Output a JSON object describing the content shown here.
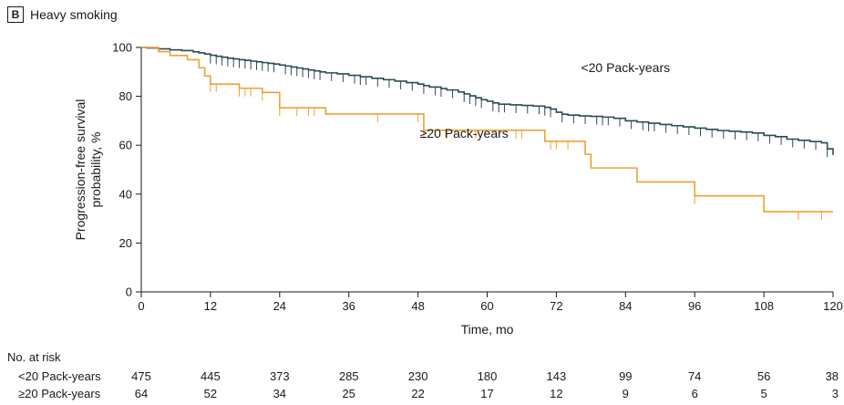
{
  "panel": {
    "letter": "B",
    "title": "Heavy smoking"
  },
  "colors": {
    "low": "#2d4b55",
    "high": "#f0a033",
    "axis": "#1a1a1a"
  },
  "chart_data": {
    "type": "line",
    "title": "Heavy smoking",
    "xlabel": "Time, mo",
    "ylabel": "Progression-free survival probability, %",
    "ylabel_lines": [
      "Progression-free survival",
      "probability, %"
    ],
    "xlim": [
      0,
      120
    ],
    "ylim": [
      0,
      100
    ],
    "xticks": [
      0,
      12,
      24,
      36,
      48,
      60,
      72,
      84,
      96,
      108,
      120
    ],
    "yticks": [
      0,
      20,
      40,
      60,
      80,
      100
    ],
    "grid": false,
    "series": [
      {
        "name": "<20 Pack-years",
        "color": "#2d4b55",
        "steps": [
          [
            0,
            100
          ],
          [
            1,
            99.8
          ],
          [
            3,
            99.4
          ],
          [
            5,
            99
          ],
          [
            7,
            98.7
          ],
          [
            9,
            98.2
          ],
          [
            10,
            97.8
          ],
          [
            11,
            97.3
          ],
          [
            12,
            96.8
          ],
          [
            13,
            96.4
          ],
          [
            14,
            96
          ],
          [
            15,
            95.6
          ],
          [
            16,
            95.3
          ],
          [
            17,
            95
          ],
          [
            18,
            94.7
          ],
          [
            19,
            94.4
          ],
          [
            20,
            94.1
          ],
          [
            21,
            93.8
          ],
          [
            22,
            93.5
          ],
          [
            23,
            93.2
          ],
          [
            24,
            92.8
          ],
          [
            25,
            92.4
          ],
          [
            26,
            92
          ],
          [
            27,
            91.6
          ],
          [
            28,
            91.2
          ],
          [
            29,
            90.8
          ],
          [
            30,
            90.4
          ],
          [
            31,
            90
          ],
          [
            32,
            89.6
          ],
          [
            34,
            89.2
          ],
          [
            36,
            88.6
          ],
          [
            38,
            88
          ],
          [
            40,
            87.4
          ],
          [
            42,
            86.8
          ],
          [
            44,
            86.2
          ],
          [
            46,
            85.6
          ],
          [
            48,
            85
          ],
          [
            49,
            84.4
          ],
          [
            50,
            83.8
          ],
          [
            52,
            83.2
          ],
          [
            53,
            82.6
          ],
          [
            55,
            81.8
          ],
          [
            56,
            81
          ],
          [
            57,
            80.2
          ],
          [
            58,
            79.4
          ],
          [
            59,
            78.6
          ],
          [
            60,
            78
          ],
          [
            61,
            77.3
          ],
          [
            62,
            76.8
          ],
          [
            64,
            76.5
          ],
          [
            66,
            76.3
          ],
          [
            68,
            76
          ],
          [
            70,
            75.5
          ],
          [
            71,
            74.8
          ],
          [
            72,
            73.5
          ],
          [
            73,
            72.7
          ],
          [
            74,
            72.3
          ],
          [
            76,
            72
          ],
          [
            78,
            71.8
          ],
          [
            80,
            71.5
          ],
          [
            82,
            71
          ],
          [
            84,
            70
          ],
          [
            86,
            69.5
          ],
          [
            88,
            69
          ],
          [
            90,
            68.5
          ],
          [
            92,
            68
          ],
          [
            94,
            67.5
          ],
          [
            96,
            67
          ],
          [
            98,
            66.5
          ],
          [
            100,
            66
          ],
          [
            102,
            65.7
          ],
          [
            104,
            65.4
          ],
          [
            106,
            65
          ],
          [
            108,
            64
          ],
          [
            110,
            63.5
          ],
          [
            112,
            62.5
          ],
          [
            114,
            62
          ],
          [
            116,
            61.5
          ],
          [
            118,
            61
          ],
          [
            119,
            58.5
          ],
          [
            120,
            56
          ]
        ],
        "censor": [
          [
            12,
            96.8
          ],
          [
            13,
            96.4
          ],
          [
            14,
            96
          ],
          [
            15,
            95.6
          ],
          [
            16,
            95.3
          ],
          [
            17,
            95
          ],
          [
            18,
            94.7
          ],
          [
            19,
            94.4
          ],
          [
            20,
            94.1
          ],
          [
            21,
            93.8
          ],
          [
            22,
            93.5
          ],
          [
            23,
            93.2
          ],
          [
            25,
            92.4
          ],
          [
            26,
            92
          ],
          [
            27,
            91.6
          ],
          [
            28,
            91.2
          ],
          [
            29,
            90.8
          ],
          [
            30,
            90.4
          ],
          [
            31,
            90
          ],
          [
            33,
            89.6
          ],
          [
            35,
            89.2
          ],
          [
            37,
            88.6
          ],
          [
            38,
            88
          ],
          [
            39,
            88
          ],
          [
            41,
            87.4
          ],
          [
            43,
            86.8
          ],
          [
            45,
            86.2
          ],
          [
            47,
            85.6
          ],
          [
            49,
            84.4
          ],
          [
            51,
            83.8
          ],
          [
            52,
            83.2
          ],
          [
            54,
            82.6
          ],
          [
            56,
            81
          ],
          [
            57,
            80.2
          ],
          [
            58,
            79.4
          ],
          [
            59,
            78.6
          ],
          [
            61,
            77.3
          ],
          [
            62,
            76.8
          ],
          [
            63,
            76.8
          ],
          [
            65,
            76.5
          ],
          [
            67,
            76.3
          ],
          [
            69,
            76
          ],
          [
            70,
            75.5
          ],
          [
            71,
            74.8
          ],
          [
            73,
            72.7
          ],
          [
            75,
            72.3
          ],
          [
            77,
            72
          ],
          [
            79,
            71.8
          ],
          [
            80,
            71.5
          ],
          [
            81,
            71.5
          ],
          [
            83,
            71
          ],
          [
            85,
            70
          ],
          [
            87,
            69.5
          ],
          [
            88,
            69
          ],
          [
            89,
            69
          ],
          [
            91,
            68.5
          ],
          [
            93,
            68
          ],
          [
            95,
            67.5
          ],
          [
            97,
            67
          ],
          [
            99,
            66.5
          ],
          [
            101,
            66
          ],
          [
            103,
            65.7
          ],
          [
            105,
            65.4
          ],
          [
            107,
            65
          ],
          [
            109,
            64
          ],
          [
            111,
            63.5
          ],
          [
            113,
            62.5
          ],
          [
            115,
            62
          ],
          [
            117,
            61.5
          ],
          [
            119,
            58.5
          ]
        ]
      },
      {
        "name": "≥20 Pack-years",
        "color": "#f0a033",
        "steps": [
          [
            0,
            100
          ],
          [
            3,
            98.3
          ],
          [
            5,
            96.7
          ],
          [
            8,
            95
          ],
          [
            10,
            91.7
          ],
          [
            11,
            88.3
          ],
          [
            12,
            85
          ],
          [
            17,
            83.3
          ],
          [
            21,
            81.6
          ],
          [
            24,
            75.3
          ],
          [
            32,
            72.8
          ],
          [
            49,
            66.1
          ],
          [
            70,
            61.6
          ],
          [
            77,
            56.3
          ],
          [
            78,
            50.7
          ],
          [
            86,
            45
          ],
          [
            96,
            39.3
          ],
          [
            108,
            32.8
          ],
          [
            120,
            32.8
          ]
        ],
        "censor": [
          [
            12,
            85
          ],
          [
            13,
            85
          ],
          [
            17,
            83.3
          ],
          [
            18,
            83.3
          ],
          [
            19,
            83.3
          ],
          [
            21,
            81.6
          ],
          [
            24,
            75.3
          ],
          [
            27,
            75.3
          ],
          [
            29,
            75.3
          ],
          [
            30,
            75.3
          ],
          [
            41,
            72.8
          ],
          [
            48,
            72.8
          ],
          [
            49,
            66.1
          ],
          [
            53,
            66.1
          ],
          [
            58,
            66.1
          ],
          [
            65,
            66.1
          ],
          [
            66,
            66.1
          ],
          [
            71,
            61.6
          ],
          [
            72,
            61.6
          ],
          [
            74,
            61.6
          ],
          [
            96,
            39.3
          ],
          [
            114,
            32.8
          ],
          [
            118,
            32.8
          ]
        ]
      }
    ],
    "annotations": [
      {
        "text": "<20 Pack-years",
        "x": 84,
        "y": 90
      },
      {
        "text": "≥20 Pack-years",
        "x": 56,
        "y": 63
      }
    ]
  },
  "risk_table": {
    "title": "No. at risk",
    "rows": [
      {
        "label": "<20 Pack-years",
        "values": [
          "475",
          "445",
          "373",
          "285",
          "230",
          "180",
          "143",
          "99",
          "74",
          "56",
          "38"
        ]
      },
      {
        "label": "≥20 Pack-years",
        "values": [
          "64",
          "52",
          "34",
          "25",
          "22",
          "17",
          "12",
          "9",
          "6",
          "5",
          "3"
        ]
      }
    ]
  }
}
